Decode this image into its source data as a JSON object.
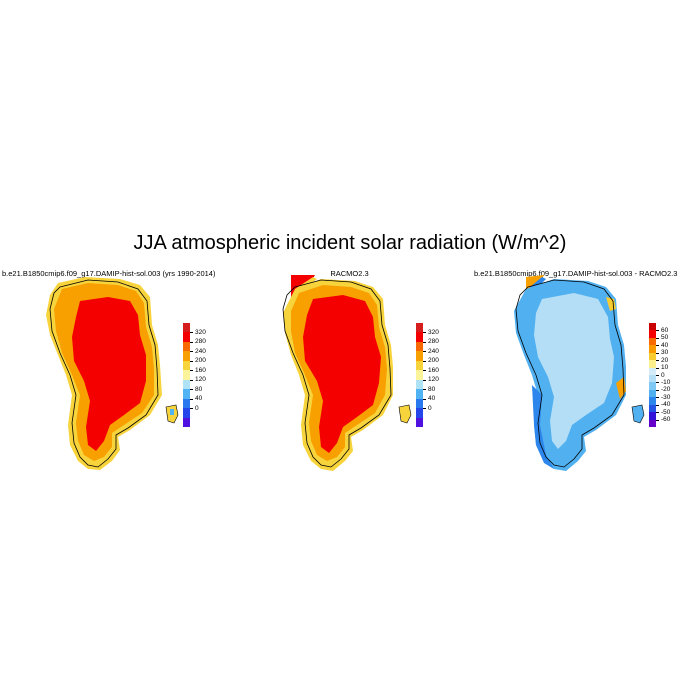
{
  "title": "JJA atmospheric incident solar radiation (W/m^2)",
  "panels": [
    {
      "title": "b.e21.B1850cmip6.f09_g17.DAMIP-hist-sol.003 (yrs 1990-2014)",
      "colorbar": {
        "labels": [
          "320",
          "280",
          "240",
          "200",
          "160",
          "120",
          "80",
          "40",
          "0"
        ],
        "colors": [
          "#d61d1d",
          "#f40000",
          "#f86a00",
          "#f8a000",
          "#f8d43c",
          "#fbf49a",
          "#aee2f4",
          "#50b4f4",
          "#2a78f0",
          "#2446ea",
          "#5010e0"
        ]
      }
    },
    {
      "title": "RACMO2.3",
      "colorbar": {
        "labels": [
          "320",
          "280",
          "240",
          "200",
          "160",
          "120",
          "80",
          "40",
          "0"
        ],
        "colors": [
          "#d61d1d",
          "#f40000",
          "#f86a00",
          "#f8a000",
          "#f8d43c",
          "#fbf49a",
          "#aee2f4",
          "#50b4f4",
          "#2a78f0",
          "#2446ea",
          "#5010e0"
        ]
      }
    },
    {
      "title": "b.e21.B1850cmip6.f09_g17.DAMIP-hist-sol.003 - RACMO2.3",
      "colorbar": {
        "labels": [
          "60",
          "50",
          "40",
          "30",
          "20",
          "10",
          "0",
          "-10",
          "-20",
          "-30",
          "-40",
          "-50",
          "-60"
        ],
        "colors": [
          "#c80000",
          "#f40000",
          "#f86a00",
          "#f89a00",
          "#f8cc30",
          "#fbf08c",
          "#d4ecf8",
          "#b4def6",
          "#80c8f4",
          "#50b0f0",
          "#2c86ec",
          "#2454e6",
          "#3414d8",
          "#6400c8"
        ]
      }
    }
  ]
}
